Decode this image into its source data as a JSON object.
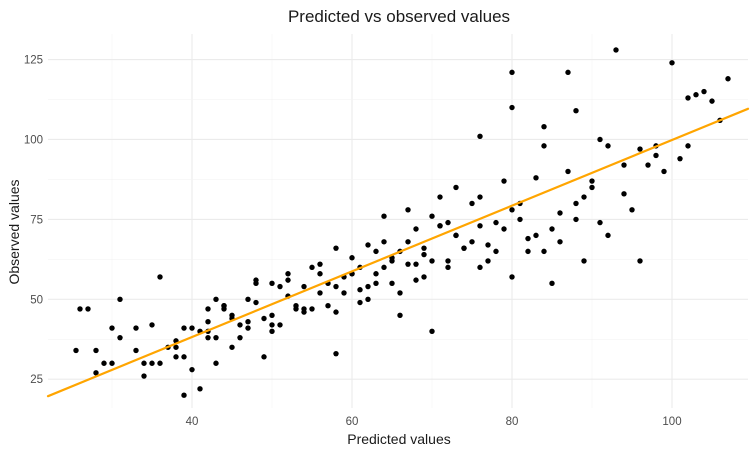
{
  "chart_data": {
    "type": "scatter",
    "title": "Predicted vs observed values",
    "xlabel": "Predicted values",
    "ylabel": "Observed values",
    "xlim": [
      22,
      109.5
    ],
    "ylim": [
      16,
      133
    ],
    "x_ticks": [
      40,
      60,
      80,
      100
    ],
    "y_ticks": [
      25,
      50,
      75,
      100,
      125
    ],
    "grid": true,
    "point_color": "#000000",
    "fit_line": {
      "color": "#FFA500",
      "x": [
        22,
        109.5
      ],
      "y": [
        19.7,
        109.6
      ]
    },
    "points": {
      "x": [
        25.5,
        26,
        27,
        28,
        28,
        29,
        30,
        31,
        33,
        34,
        35,
        36,
        38,
        39,
        40,
        41,
        42,
        43,
        44,
        45,
        47,
        48,
        49,
        50,
        52,
        54,
        56,
        58,
        60,
        62,
        64,
        66,
        68,
        70,
        72,
        74,
        76,
        78,
        80,
        82,
        84,
        86,
        88,
        90,
        92,
        94,
        96,
        98,
        100,
        102,
        104,
        106,
        107,
        101,
        93,
        87,
        80,
        76,
        73,
        70,
        66,
        62,
        58,
        54,
        50,
        46,
        42,
        38,
        36,
        33,
        30,
        39,
        44,
        48,
        52,
        56,
        60,
        64,
        68,
        72,
        76,
        80,
        84,
        88,
        92,
        96,
        40,
        42,
        45,
        50,
        55,
        58,
        61,
        63,
        65,
        67,
        69,
        71,
        73,
        75,
        77,
        79,
        81,
        83,
        85,
        89,
        91,
        95,
        97,
        99,
        103,
        105,
        43,
        47,
        51,
        53,
        57,
        59,
        61,
        63,
        65,
        67,
        69,
        71,
        37,
        41,
        45,
        49,
        53,
        57,
        61,
        65,
        69,
        73,
        77,
        81,
        85,
        89,
        31,
        35,
        39,
        43,
        47,
        51,
        55,
        59,
        63,
        67,
        71,
        75,
        79,
        83,
        87,
        91,
        34,
        38,
        42,
        46,
        50,
        54,
        58,
        62,
        66,
        70,
        74,
        78,
        82,
        86,
        90,
        94,
        98,
        102,
        44,
        48,
        52,
        56,
        60,
        64,
        68,
        72,
        76,
        80,
        84,
        88
      ],
      "y": [
        34,
        47,
        47,
        27,
        34,
        30,
        41,
        50,
        41,
        26,
        30,
        57,
        37,
        20,
        28,
        22,
        43,
        38,
        47,
        44,
        41,
        49,
        32,
        55,
        51,
        47,
        61,
        66,
        58,
        67,
        76,
        65,
        56,
        76,
        62,
        66,
        73,
        74,
        78,
        65,
        98,
        68,
        80,
        87,
        98,
        83,
        97,
        98,
        124,
        113,
        115,
        106,
        119,
        94,
        128,
        121,
        121,
        101,
        85,
        40,
        45,
        50,
        33,
        54,
        42,
        38,
        40,
        32,
        30,
        34,
        30,
        41,
        48,
        56,
        56,
        52,
        58,
        60,
        61,
        60,
        60,
        57,
        65,
        75,
        70,
        62,
        41,
        47,
        45,
        45,
        47,
        54,
        53,
        58,
        63,
        61,
        66,
        73,
        70,
        68,
        67,
        72,
        80,
        70,
        72,
        82,
        74,
        78,
        92,
        90,
        114,
        112,
        50,
        43,
        42,
        48,
        48,
        57,
        60,
        55,
        55,
        68,
        64,
        73,
        35,
        40,
        35,
        44,
        47,
        55,
        49,
        62,
        57,
        70,
        62,
        75,
        55,
        62,
        38,
        42,
        32,
        30,
        50,
        54,
        60,
        52,
        65,
        78,
        82,
        80,
        87,
        88,
        90,
        100,
        30,
        35,
        38,
        42,
        40,
        46,
        46,
        54,
        52,
        62,
        66,
        65,
        69,
        77,
        85,
        92,
        95,
        98,
        48,
        55,
        58,
        58,
        63,
        68,
        72,
        74,
        82,
        110,
        104,
        109
      ]
    }
  }
}
